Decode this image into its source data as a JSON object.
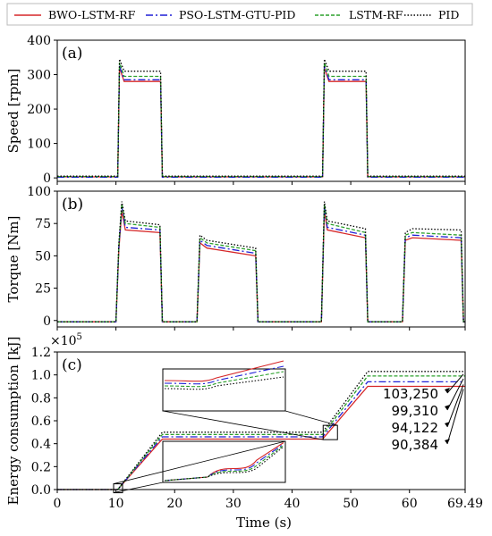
{
  "chart_data": {
    "type": "line",
    "legend": {
      "position": "top",
      "entries": [
        {
          "name": "BWO-LSTM-RF",
          "color": "#d62728",
          "dash": "solid"
        },
        {
          "name": "PSO-LSTM-GTU-PID",
          "color": "#1f1fd6",
          "dash": "dashdot"
        },
        {
          "name": "LSTM-RF",
          "color": "#2ca02c",
          "dash": "dashed"
        },
        {
          "name": "PID",
          "color": "#000000",
          "dash": "dotted"
        }
      ]
    },
    "xlabel": "Time (s)",
    "xlim": [
      0,
      69.49
    ],
    "xticks": [
      "0",
      "10",
      "20",
      "30",
      "40",
      "50",
      "60",
      "69.49"
    ],
    "panels": [
      {
        "label": "(a)",
        "ylabel": "Speed [rpm]",
        "ylim": [
          -10,
          400
        ],
        "yticks": [
          0,
          100,
          200,
          300,
          400
        ],
        "series": [
          {
            "name": "BWO-LSTM-RF",
            "values": [
              [
                0,
                3
              ],
              [
                10.3,
                3
              ],
              [
                10.6,
                320
              ],
              [
                11.4,
                280
              ],
              [
                17.6,
                280
              ],
              [
                17.9,
                3
              ],
              [
                45.2,
                3
              ],
              [
                45.5,
                320
              ],
              [
                46.3,
                280
              ],
              [
                52.6,
                280
              ],
              [
                52.9,
                3
              ],
              [
                69.49,
                3
              ]
            ]
          },
          {
            "name": "PSO-LSTM-GTU-PID",
            "values": [
              [
                0,
                2
              ],
              [
                10.3,
                2
              ],
              [
                10.6,
                325
              ],
              [
                11.4,
                285
              ],
              [
                17.6,
                285
              ],
              [
                17.9,
                2
              ],
              [
                45.2,
                2
              ],
              [
                45.5,
                325
              ],
              [
                46.3,
                285
              ],
              [
                52.6,
                285
              ],
              [
                52.9,
                2
              ],
              [
                69.49,
                2
              ]
            ]
          },
          {
            "name": "LSTM-RF",
            "values": [
              [
                0,
                4
              ],
              [
                10.3,
                4
              ],
              [
                10.6,
                335
              ],
              [
                11.4,
                295
              ],
              [
                17.6,
                295
              ],
              [
                17.9,
                4
              ],
              [
                45.2,
                4
              ],
              [
                45.5,
                335
              ],
              [
                46.3,
                295
              ],
              [
                52.6,
                295
              ],
              [
                52.9,
                4
              ],
              [
                69.49,
                4
              ]
            ]
          },
          {
            "name": "PID",
            "values": [
              [
                0,
                5
              ],
              [
                10.3,
                5
              ],
              [
                10.6,
                345
              ],
              [
                11.4,
                310
              ],
              [
                17.6,
                310
              ],
              [
                17.9,
                5
              ],
              [
                45.2,
                5
              ],
              [
                45.5,
                345
              ],
              [
                46.3,
                310
              ],
              [
                52.6,
                310
              ],
              [
                52.9,
                5
              ],
              [
                69.49,
                5
              ]
            ]
          }
        ]
      },
      {
        "label": "(b)",
        "ylabel": "Torque [Nm]",
        "ylim": [
          -5,
          100
        ],
        "yticks": [
          0,
          25,
          50,
          75,
          100
        ],
        "series": [
          {
            "name": "BWO-LSTM-RF",
            "values": [
              [
                0,
                -1
              ],
              [
                10,
                -1
              ],
              [
                10.5,
                55
              ],
              [
                11,
                85
              ],
              [
                11.6,
                70
              ],
              [
                17.5,
                68
              ],
              [
                17.9,
                -1
              ],
              [
                23.8,
                -1
              ],
              [
                24.3,
                60
              ],
              [
                25.5,
                56
              ],
              [
                33.8,
                50
              ],
              [
                34.2,
                -1
              ],
              [
                45,
                -1
              ],
              [
                45.5,
                85
              ],
              [
                46,
                70
              ],
              [
                52.5,
                64
              ],
              [
                52.9,
                -1
              ],
              [
                58.8,
                -1
              ],
              [
                59.3,
                62
              ],
              [
                60.5,
                64
              ],
              [
                68.8,
                62
              ],
              [
                69.2,
                -1
              ],
              [
                69.49,
                -1
              ]
            ]
          },
          {
            "name": "PSO-LSTM-GTU-PID",
            "values": [
              [
                0,
                -1
              ],
              [
                10,
                -1
              ],
              [
                10.5,
                57
              ],
              [
                11,
                88
              ],
              [
                11.6,
                72
              ],
              [
                17.5,
                70
              ],
              [
                17.9,
                -1
              ],
              [
                23.8,
                -1
              ],
              [
                24.3,
                62
              ],
              [
                25.5,
                58
              ],
              [
                33.8,
                52
              ],
              [
                34.2,
                -1
              ],
              [
                45,
                -1
              ],
              [
                45.5,
                88
              ],
              [
                46,
                72
              ],
              [
                52.5,
                66
              ],
              [
                52.9,
                -1
              ],
              [
                58.8,
                -1
              ],
              [
                59.3,
                64
              ],
              [
                60.5,
                66
              ],
              [
                68.8,
                64
              ],
              [
                69.2,
                -1
              ],
              [
                69.49,
                -1
              ]
            ]
          },
          {
            "name": "LSTM-RF",
            "values": [
              [
                0,
                -1
              ],
              [
                10,
                -1
              ],
              [
                10.5,
                58
              ],
              [
                11,
                90
              ],
              [
                11.6,
                75
              ],
              [
                17.5,
                72
              ],
              [
                17.9,
                -1
              ],
              [
                23.8,
                -1
              ],
              [
                24.3,
                64
              ],
              [
                25.5,
                60
              ],
              [
                33.8,
                54
              ],
              [
                34.2,
                -1
              ],
              [
                45,
                -1
              ],
              [
                45.5,
                90
              ],
              [
                46,
                75
              ],
              [
                52.5,
                68
              ],
              [
                52.9,
                -1
              ],
              [
                58.8,
                -1
              ],
              [
                59.3,
                66
              ],
              [
                60.5,
                68
              ],
              [
                68.8,
                66
              ],
              [
                69.2,
                -1
              ],
              [
                69.49,
                -1
              ]
            ]
          },
          {
            "name": "PID",
            "values": [
              [
                0,
                -1
              ],
              [
                10,
                -1
              ],
              [
                10.5,
                60
              ],
              [
                11,
                92
              ],
              [
                11.6,
                77
              ],
              [
                17.5,
                74
              ],
              [
                17.9,
                -1
              ],
              [
                23.8,
                -1
              ],
              [
                24.3,
                66
              ],
              [
                25.5,
                62
              ],
              [
                33.8,
                56
              ],
              [
                34.2,
                -1
              ],
              [
                45,
                -1
              ],
              [
                45.5,
                92
              ],
              [
                46,
                77
              ],
              [
                52.5,
                71
              ],
              [
                52.9,
                -1
              ],
              [
                58.8,
                -1
              ],
              [
                59.3,
                68
              ],
              [
                60.5,
                71
              ],
              [
                68.8,
                70
              ],
              [
                69.2,
                -1
              ],
              [
                69.49,
                -1
              ]
            ]
          }
        ]
      },
      {
        "label": "(c)",
        "ylabel": "Energy consumption [kJ]",
        "yscale_label": "×10^5",
        "ylim": [
          0,
          1.2
        ],
        "yticks": [
          "0.0",
          "0.2",
          "0.4",
          "0.6",
          "0.8",
          "1.0",
          "1.2"
        ],
        "series": [
          {
            "name": "BWO-LSTM-RF",
            "values": [
              [
                0,
                0
              ],
              [
                10.3,
                0
              ],
              [
                17.9,
                0.44
              ],
              [
                45.2,
                0.44
              ],
              [
                52.9,
                0.9
              ],
              [
                69.49,
                0.9
              ]
            ]
          },
          {
            "name": "PSO-LSTM-GTU-PID",
            "values": [
              [
                0,
                0
              ],
              [
                10.3,
                0
              ],
              [
                17.9,
                0.46
              ],
              [
                45.2,
                0.46
              ],
              [
                52.9,
                0.94
              ],
              [
                69.49,
                0.94
              ]
            ]
          },
          {
            "name": "LSTM-RF",
            "values": [
              [
                0,
                0
              ],
              [
                10.3,
                0
              ],
              [
                17.9,
                0.48
              ],
              [
                45.2,
                0.48
              ],
              [
                52.9,
                0.99
              ],
              [
                69.49,
                0.99
              ]
            ]
          },
          {
            "name": "PID",
            "values": [
              [
                0,
                0
              ],
              [
                10.3,
                0
              ],
              [
                17.9,
                0.5
              ],
              [
                45.2,
                0.5
              ],
              [
                52.9,
                1.03
              ],
              [
                69.49,
                1.03
              ]
            ]
          }
        ],
        "annotations": [
          {
            "text": "103,250",
            "color": "#000000"
          },
          {
            "text": "99,310",
            "color": "#2ca02c"
          },
          {
            "text": "94,122",
            "color": "#1f1fd6"
          },
          {
            "text": "90,384",
            "color": "#d62728"
          }
        ]
      }
    ]
  }
}
